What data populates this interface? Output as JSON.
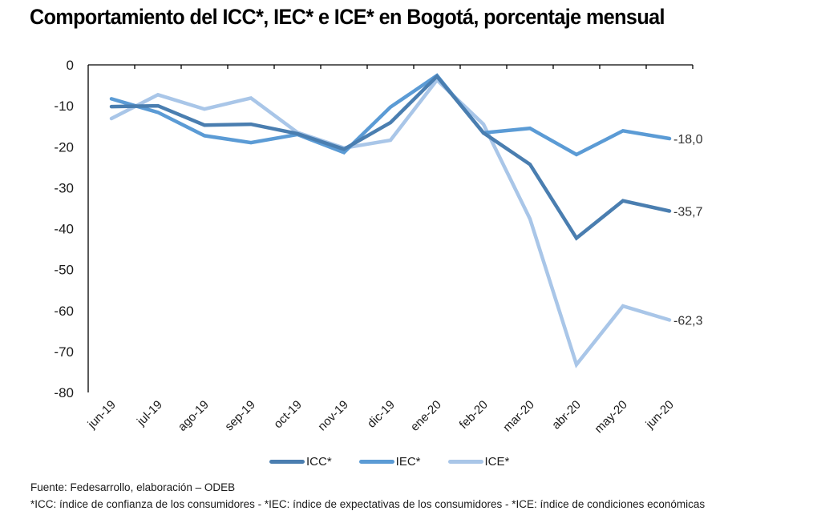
{
  "title": "Comportamiento del ICC*, IEC* e ICE* en Bogotá, porcentaje mensual",
  "chart_data": {
    "type": "line",
    "title": "Comportamiento del ICC*, IEC* e ICE* en Bogotá, porcentaje mensual",
    "xlabel": "",
    "ylabel": "",
    "categories": [
      "jun-19",
      "jul-19",
      "ago-19",
      "sep-19",
      "oct-19",
      "nov-19",
      "dic-19",
      "ene-20",
      "feb-20",
      "mar-20",
      "abr-20",
      "may-20",
      "jun-20"
    ],
    "ylim": [
      -80,
      0
    ],
    "yticks": [
      0,
      -10,
      -20,
      -30,
      -40,
      -50,
      -60,
      -70,
      -80
    ],
    "x_axis_position": "top",
    "grid": false,
    "legend_position": "bottom",
    "series": [
      {
        "name": "ICC*",
        "color": "#4a7eb0",
        "values": [
          -10.2,
          -10.0,
          -14.7,
          -14.5,
          -16.8,
          -20.6,
          -14.1,
          -2.8,
          -16.6,
          -24.3,
          -42.3,
          -33.2,
          -35.7
        ],
        "end_label": "-35,7"
      },
      {
        "name": "IEC*",
        "color": "#5b9bd5",
        "values": [
          -8.3,
          -11.6,
          -17.3,
          -19.0,
          -17.0,
          -21.4,
          -10.3,
          -2.6,
          -16.6,
          -15.5,
          -21.9,
          -16.1,
          -18.0
        ],
        "end_label": "-18,0"
      },
      {
        "name": "ICE*",
        "color": "#a9c6e8",
        "values": [
          -13.1,
          -7.3,
          -10.8,
          -8.1,
          -16.5,
          -20.3,
          -18.4,
          -3.7,
          -14.5,
          -37.6,
          -73.2,
          -58.9,
          -62.3
        ],
        "end_label": "-62,3"
      }
    ]
  },
  "footnotes": {
    "source": "Fuente: Fedesarrollo, elaboración – ODEB",
    "definitions": "*ICC: índice de confianza de los consumidores - *IEC: índice de expectativas de los consumidores  - *ICE: índice de condiciones económicas"
  }
}
